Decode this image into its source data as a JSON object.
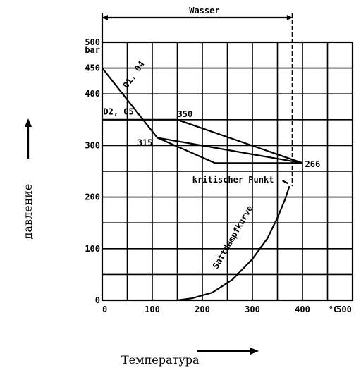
{
  "chart_data": {
    "type": "line",
    "title": "",
    "xlabel": "Температура",
    "ylabel": "давление",
    "x_unit": "°C",
    "y_unit": "bar",
    "xlim": [
      0,
      500
    ],
    "ylim": [
      0,
      500
    ],
    "x_ticks": [
      "0",
      "100",
      "200",
      "300",
      "400",
      "°C",
      "500"
    ],
    "y_ticks": [
      "0",
      "100",
      "200",
      "300",
      "400",
      "450",
      "500"
    ],
    "y_unit_label": "bar",
    "region_label": "Wasser",
    "region_x_range": [
      0,
      380
    ],
    "series": [
      {
        "name": "D1, 04",
        "x": [
          0,
          110,
          400,
          400
        ],
        "y": [
          450,
          315,
          266,
          266
        ]
      },
      {
        "name": "D2, 05",
        "x": [
          0,
          150,
          400
        ],
        "y": [
          350,
          350,
          266
        ]
      },
      {
        "name": "",
        "x": [
          110,
          225,
          400
        ],
        "y": [
          315,
          266,
          266
        ]
      },
      {
        "name": "Sattdampfkurve",
        "x": [
          150,
          180,
          220,
          260,
          300,
          330,
          350,
          365,
          374
        ],
        "y": [
          0,
          4,
          15,
          40,
          80,
          120,
          160,
          195,
          221
        ]
      }
    ],
    "annotations": [
      {
        "text": "D1, 04",
        "x": 50,
        "y": 410
      },
      {
        "text": "D2, 05",
        "x": 2,
        "y": 360
      },
      {
        "text": "350",
        "x": 150,
        "y": 355
      },
      {
        "text": "315",
        "x": 70,
        "y": 300
      },
      {
        "text": "266",
        "x": 405,
        "y": 258
      },
      {
        "text": "kritischer Punkt",
        "x": 180,
        "y": 228
      },
      {
        "text": "Sattdampfkurve",
        "x": 230,
        "y": 60
      }
    ],
    "grid": true
  },
  "colors": {
    "ink": "#000000",
    "background": "#ffffff"
  }
}
